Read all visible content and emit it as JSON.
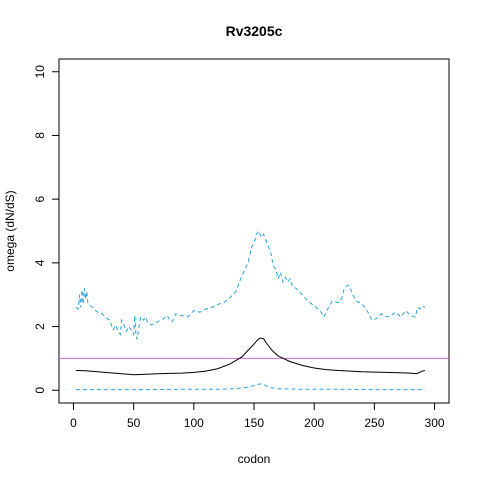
{
  "chart_data": {
    "type": "line",
    "title": "Rv3205c",
    "xlabel": "codon",
    "ylabel": "omega (dN/dS)",
    "xlim": [
      -12,
      312
    ],
    "ylim": [
      -0.4,
      10.4
    ],
    "x_ticks": [
      0,
      50,
      100,
      150,
      200,
      250,
      300
    ],
    "y_ticks": [
      0,
      2,
      4,
      6,
      8,
      10
    ],
    "grid": false,
    "legend": "none",
    "reference_line": {
      "y": 1,
      "color": "#cc66cc"
    },
    "series": [
      {
        "role": "upper",
        "color": "#29a3e0",
        "dash": "dashed",
        "points": [
          [
            2,
            2.6
          ],
          [
            4,
            2.55
          ],
          [
            5,
            3.0
          ],
          [
            6,
            2.6
          ],
          [
            7,
            3.15
          ],
          [
            8,
            2.7
          ],
          [
            9,
            3.2
          ],
          [
            10,
            2.85
          ],
          [
            11,
            3.1
          ],
          [
            12,
            2.75
          ],
          [
            14,
            2.65
          ],
          [
            16,
            2.6
          ],
          [
            20,
            2.45
          ],
          [
            24,
            2.4
          ],
          [
            26,
            2.3
          ],
          [
            30,
            2.2
          ],
          [
            33,
            1.9
          ],
          [
            35,
            2.05
          ],
          [
            37,
            1.85
          ],
          [
            39,
            1.75
          ],
          [
            40,
            2.2
          ],
          [
            42,
            2.05
          ],
          [
            44,
            1.85
          ],
          [
            46,
            2.0
          ],
          [
            48,
            1.9
          ],
          [
            50,
            1.75
          ],
          [
            51,
            2.35
          ],
          [
            52,
            1.7
          ],
          [
            53,
            1.6
          ],
          [
            55,
            2.15
          ],
          [
            56,
            2.3
          ],
          [
            58,
            2.2
          ],
          [
            60,
            2.3
          ],
          [
            62,
            2.1
          ],
          [
            65,
            2.05
          ],
          [
            70,
            2.15
          ],
          [
            75,
            2.25
          ],
          [
            78,
            2.35
          ],
          [
            80,
            2.2
          ],
          [
            82,
            2.15
          ],
          [
            85,
            2.4
          ],
          [
            88,
            2.35
          ],
          [
            90,
            2.35
          ],
          [
            95,
            2.3
          ],
          [
            100,
            2.5
          ],
          [
            105,
            2.45
          ],
          [
            110,
            2.55
          ],
          [
            115,
            2.6
          ],
          [
            120,
            2.7
          ],
          [
            125,
            2.75
          ],
          [
            130,
            2.9
          ],
          [
            135,
            3.1
          ],
          [
            140,
            3.6
          ],
          [
            145,
            4.0
          ],
          [
            148,
            4.5
          ],
          [
            150,
            4.6
          ],
          [
            152,
            4.9
          ],
          [
            154,
            5.0
          ],
          [
            156,
            4.8
          ],
          [
            158,
            4.9
          ],
          [
            160,
            4.7
          ],
          [
            162,
            4.5
          ],
          [
            164,
            4.3
          ],
          [
            166,
            3.9
          ],
          [
            168,
            3.8
          ],
          [
            170,
            3.5
          ],
          [
            172,
            3.7
          ],
          [
            174,
            3.4
          ],
          [
            176,
            3.55
          ],
          [
            178,
            3.4
          ],
          [
            180,
            3.5
          ],
          [
            182,
            3.25
          ],
          [
            185,
            3.2
          ],
          [
            190,
            3.0
          ],
          [
            195,
            2.8
          ],
          [
            200,
            2.65
          ],
          [
            205,
            2.5
          ],
          [
            208,
            2.3
          ],
          [
            212,
            2.6
          ],
          [
            215,
            2.8
          ],
          [
            220,
            2.75
          ],
          [
            223,
            2.9
          ],
          [
            225,
            3.2
          ],
          [
            228,
            3.3
          ],
          [
            230,
            3.2
          ],
          [
            232,
            3.0
          ],
          [
            235,
            2.8
          ],
          [
            240,
            2.7
          ],
          [
            244,
            2.5
          ],
          [
            248,
            2.2
          ],
          [
            252,
            2.25
          ],
          [
            256,
            2.4
          ],
          [
            260,
            2.3
          ],
          [
            264,
            2.35
          ],
          [
            268,
            2.45
          ],
          [
            272,
            2.3
          ],
          [
            276,
            2.5
          ],
          [
            280,
            2.35
          ],
          [
            284,
            2.3
          ],
          [
            286,
            2.6
          ],
          [
            288,
            2.55
          ],
          [
            290,
            2.65
          ],
          [
            292,
            2.6
          ]
        ]
      },
      {
        "role": "mean",
        "color": "#000000",
        "dash": "solid",
        "points": [
          [
            2,
            0.62
          ],
          [
            10,
            0.61
          ],
          [
            20,
            0.58
          ],
          [
            30,
            0.55
          ],
          [
            40,
            0.52
          ],
          [
            50,
            0.49
          ],
          [
            60,
            0.5
          ],
          [
            70,
            0.52
          ],
          [
            80,
            0.53
          ],
          [
            90,
            0.54
          ],
          [
            100,
            0.56
          ],
          [
            110,
            0.6
          ],
          [
            120,
            0.68
          ],
          [
            130,
            0.82
          ],
          [
            140,
            1.05
          ],
          [
            145,
            1.25
          ],
          [
            150,
            1.45
          ],
          [
            153,
            1.58
          ],
          [
            155,
            1.64
          ],
          [
            158,
            1.62
          ],
          [
            160,
            1.5
          ],
          [
            165,
            1.25
          ],
          [
            170,
            1.08
          ],
          [
            180,
            0.9
          ],
          [
            190,
            0.78
          ],
          [
            200,
            0.7
          ],
          [
            210,
            0.65
          ],
          [
            220,
            0.62
          ],
          [
            230,
            0.6
          ],
          [
            240,
            0.58
          ],
          [
            250,
            0.57
          ],
          [
            260,
            0.56
          ],
          [
            270,
            0.55
          ],
          [
            280,
            0.54
          ],
          [
            285,
            0.52
          ],
          [
            290,
            0.6
          ],
          [
            292,
            0.62
          ]
        ]
      },
      {
        "role": "lower",
        "color": "#29a3e0",
        "dash": "dashed",
        "points": [
          [
            2,
            0.02
          ],
          [
            30,
            0.02
          ],
          [
            60,
            0.02
          ],
          [
            90,
            0.03
          ],
          [
            120,
            0.03
          ],
          [
            135,
            0.05
          ],
          [
            145,
            0.1
          ],
          [
            150,
            0.15
          ],
          [
            155,
            0.2
          ],
          [
            158,
            0.18
          ],
          [
            162,
            0.1
          ],
          [
            170,
            0.05
          ],
          [
            190,
            0.03
          ],
          [
            220,
            0.03
          ],
          [
            250,
            0.02
          ],
          [
            292,
            0.02
          ]
        ]
      }
    ]
  }
}
